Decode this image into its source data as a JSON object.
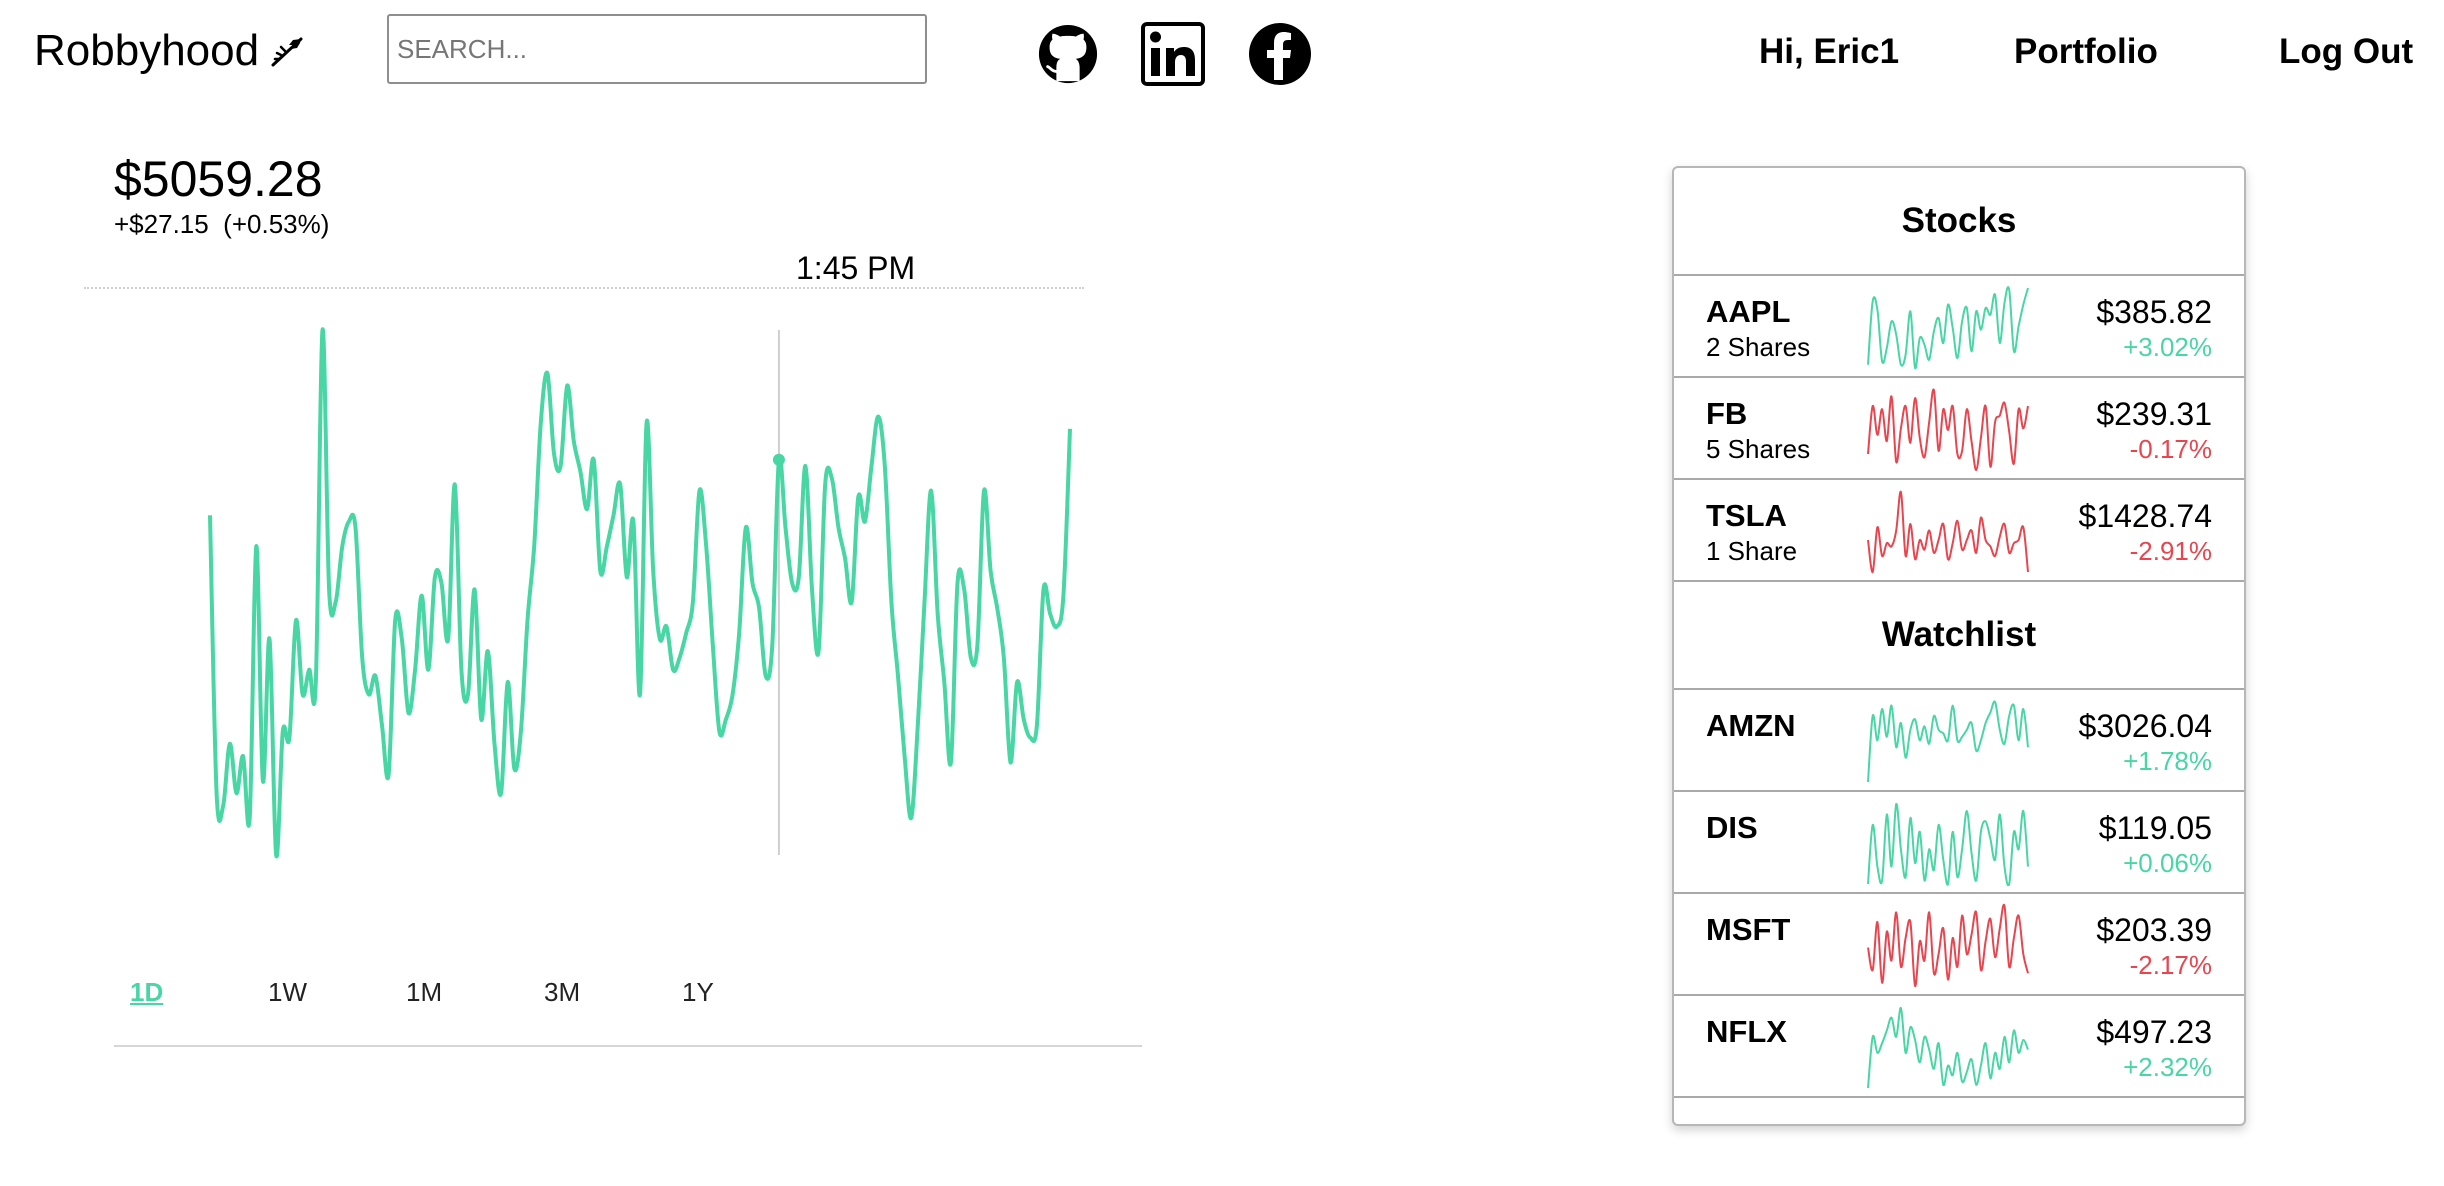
{
  "nav": {
    "brand": "Robbyhood",
    "search_placeholder": "SEARCH...",
    "greeting": "Hi, Eric1",
    "portfolio": "Portfolio",
    "logout": "Log Out",
    "social_icons": [
      "github-icon",
      "linkedin-icon",
      "facebook-icon"
    ]
  },
  "portfolio": {
    "value": "$5059.28",
    "change": "+$27.15",
    "change_pct": "(+0.53%)",
    "hover_time": "1:45 PM"
  },
  "colors": {
    "up": "#47d6a4",
    "down": "#e8454f"
  },
  "chart_data": {
    "type": "line",
    "title": "",
    "xlabel": "",
    "ylabel": "",
    "hover_index": 86,
    "series": [
      {
        "values": [
          5045,
          5000,
          4998,
          5008,
          5000,
          5006,
          4996,
          5040,
          5002,
          5025,
          4990,
          5010,
          5009,
          5028,
          5016,
          5020,
          5018,
          5075,
          5033,
          5031,
          5040,
          5044,
          5043,
          5022,
          5016,
          5019,
          5011,
          5003,
          5028,
          5025,
          5013,
          5020,
          5032,
          5020,
          5035,
          5034,
          5025,
          5050,
          5020,
          5016,
          5033,
          5012,
          5023,
          5008,
          5000,
          5018,
          5004,
          5010,
          5028,
          5040,
          5060,
          5068,
          5055,
          5053,
          5066,
          5057,
          5052,
          5046,
          5054,
          5036,
          5040,
          5045,
          5050,
          5035,
          5044,
          5016,
          5060,
          5036,
          5025,
          5027,
          5020,
          5022,
          5026,
          5031,
          5049,
          5040,
          5024,
          5010,
          5012,
          5016,
          5026,
          5043,
          5034,
          5030,
          5019,
          5024,
          5054,
          5043,
          5034,
          5035,
          5053,
          5033,
          5023,
          5050,
          5051,
          5043,
          5038,
          5031,
          5048,
          5044,
          5053,
          5061,
          5053,
          5031,
          5019,
          5006,
          4996,
          5011,
          5031,
          5049,
          5029,
          5018,
          5005,
          5034,
          5033,
          5022,
          5024,
          5049,
          5036,
          5030,
          5022,
          5005,
          5018,
          5012,
          5009,
          5011,
          5033,
          5029,
          5027,
          5032,
          5059
        ]
      }
    ]
  },
  "ranges": [
    "1D",
    "1W",
    "1M",
    "3M",
    "1Y"
  ],
  "active_range": "1D",
  "stocks": {
    "title": "Stocks",
    "items": [
      {
        "symbol": "AAPL",
        "shares": "2 Shares",
        "price": "$385.82",
        "pct": "+3.02%",
        "trend": "up",
        "spark": [
          12,
          50,
          45,
          14,
          22,
          38,
          30,
          12,
          18,
          44,
          10,
          28,
          24,
          15,
          32,
          40,
          25,
          48,
          34,
          16,
          38,
          46,
          20,
          44,
          33,
          46,
          42,
          54,
          25,
          49,
          57,
          20,
          35,
          48,
          58
        ]
      },
      {
        "symbol": "FB",
        "shares": "5 Shares",
        "price": "$239.31",
        "pct": "-0.17%",
        "trend": "down",
        "spark": [
          20,
          50,
          32,
          48,
          28,
          56,
          15,
          36,
          50,
          27,
          55,
          30,
          18,
          40,
          60,
          22,
          48,
          35,
          50,
          20,
          22,
          48,
          28,
          10,
          30,
          50,
          12,
          40,
          44,
          52,
          34,
          14,
          48,
          36,
          50
        ]
      },
      {
        "symbol": "TSLA",
        "shares": "1 Share",
        "price": "$1428.74",
        "pct": "-2.91%",
        "trend": "down",
        "spark": [
          30,
          10,
          38,
          20,
          28,
          26,
          36,
          60,
          20,
          40,
          18,
          30,
          24,
          36,
          22,
          30,
          40,
          18,
          28,
          42,
          24,
          30,
          36,
          22,
          44,
          30,
          26,
          20,
          32,
          40,
          22,
          28,
          30,
          38,
          10
        ]
      },
      {
        "symbol": "AMZN",
        "shares": "",
        "price": "$3026.04",
        "pct": "+1.78%",
        "trend": "up",
        "spark": [
          6,
          44,
          30,
          48,
          32,
          50,
          26,
          40,
          20,
          36,
          42,
          30,
          38,
          28,
          44,
          36,
          34,
          30,
          50,
          30,
          32,
          36,
          40,
          24,
          30,
          40,
          46,
          52,
          36,
          28,
          44,
          50,
          30,
          48,
          26
        ]
      },
      {
        "symbol": "DIS",
        "shares": "",
        "price": "$119.05",
        "pct": "+0.06%",
        "trend": "up",
        "spark": [
          10,
          44,
          20,
          12,
          50,
          20,
          56,
          30,
          14,
          48,
          22,
          40,
          12,
          30,
          18,
          44,
          24,
          10,
          40,
          14,
          30,
          52,
          28,
          12,
          40,
          46,
          36,
          24,
          50,
          20,
          10,
          40,
          30,
          52,
          20
        ]
      },
      {
        "symbol": "MSFT",
        "shares": "",
        "price": "$203.39",
        "pct": "-2.17%",
        "trend": "down",
        "spark": [
          34,
          20,
          50,
          12,
          44,
          26,
          56,
          22,
          40,
          50,
          10,
          38,
          26,
          56,
          18,
          30,
          46,
          14,
          40,
          22,
          54,
          30,
          42,
          56,
          20,
          38,
          52,
          28,
          46,
          60,
          22,
          40,
          54,
          30,
          18
        ]
      },
      {
        "symbol": "NFLX",
        "shares": "",
        "price": "$497.23",
        "pct": "+2.32%",
        "trend": "up",
        "spark": [
          8,
          40,
          30,
          36,
          44,
          52,
          40,
          58,
          30,
          46,
          38,
          24,
          40,
          32,
          20,
          36,
          10,
          22,
          16,
          30,
          12,
          18,
          26,
          10,
          22,
          36,
          14,
          30,
          20,
          40,
          24,
          44,
          30,
          38,
          32
        ]
      }
    ]
  },
  "watchlist": {
    "title": "Watchlist"
  }
}
